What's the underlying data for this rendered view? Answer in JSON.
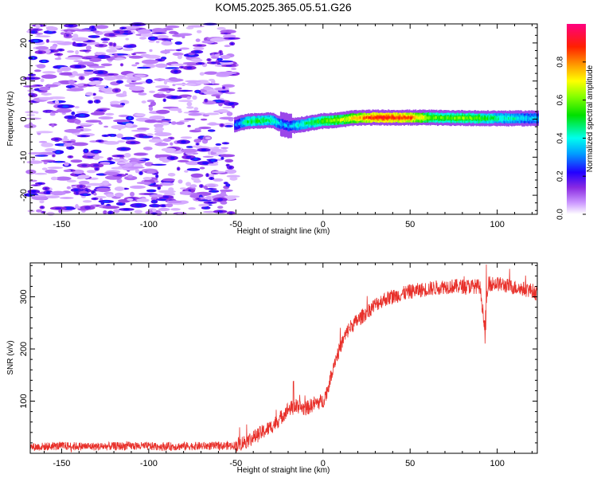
{
  "title": "KOM5.2025.365.05.51.G26",
  "colors": {
    "snr_line": "#e8302a",
    "frame": "#000000",
    "background": "#ffffff"
  },
  "chart_data": [
    {
      "type": "heatmap",
      "name": "spectrogram",
      "xlabel": "Height of straight line (km)",
      "ylabel": "Frequency (Hz)",
      "xlim": [
        -168,
        123
      ],
      "ylim": [
        -25,
        25
      ],
      "x_ticks": [
        -150,
        -100,
        -50,
        0,
        50,
        100
      ],
      "y_ticks": [
        -20,
        -10,
        0,
        10,
        20
      ],
      "noise_region_x": [
        -168,
        -51
      ],
      "noise_freq_range": [
        -25,
        25
      ],
      "signal_trace": {
        "x": [
          -51,
          -45,
          -40,
          -35,
          -30,
          -25,
          -20,
          -15,
          -10,
          -5,
          0,
          5,
          10,
          15,
          20,
          25,
          30,
          40,
          50,
          60,
          70,
          80,
          90,
          100,
          110,
          123
        ],
        "freq": [
          -1.5,
          -0.7,
          -0.5,
          -0.4,
          -0.3,
          -1.2,
          -1.8,
          -1.6,
          -1.2,
          -0.8,
          -0.5,
          -0.4,
          -0.2,
          0.2,
          0.3,
          0.4,
          0.4,
          0.4,
          0.4,
          0.4,
          0.3,
          0.3,
          0.2,
          0.2,
          0.2,
          0.2
        ],
        "amplitude": [
          0.25,
          0.45,
          0.5,
          0.5,
          0.45,
          0.35,
          0.3,
          0.4,
          0.45,
          0.5,
          0.55,
          0.6,
          0.65,
          0.7,
          0.75,
          0.85,
          0.9,
          0.9,
          0.85,
          0.6,
          0.55,
          0.6,
          0.55,
          0.45,
          0.4,
          0.35
        ]
      },
      "colorbar": {
        "label": "Normalized spectral amplitude",
        "range": [
          0,
          1
        ],
        "ticks": [
          "0.0",
          "0.2",
          "0.4",
          "0.6",
          "0.8"
        ]
      }
    },
    {
      "type": "line",
      "name": "snr",
      "xlabel": "Height of straight line (km)",
      "ylabel": "SNR (v/v)",
      "xlim": [
        -168,
        123
      ],
      "ylim": [
        0,
        365
      ],
      "x_ticks": [
        -150,
        -100,
        -50,
        0,
        50,
        100
      ],
      "y_ticks": [
        100,
        200,
        300
      ],
      "series": [
        {
          "name": "SNR",
          "x": [
            -168,
            -150,
            -130,
            -110,
            -90,
            -70,
            -60,
            -50,
            -45,
            -40,
            -35,
            -30,
            -25,
            -20,
            -15,
            -10,
            -5,
            0,
            3,
            6,
            9,
            12,
            15,
            20,
            25,
            30,
            35,
            40,
            50,
            60,
            70,
            80,
            90,
            93,
            95,
            100,
            110,
            120,
            123
          ],
          "y": [
            12,
            14,
            13,
            14,
            13,
            14,
            14,
            15,
            22,
            30,
            40,
            50,
            65,
            85,
            90,
            85,
            95,
            100,
            125,
            170,
            195,
            220,
            240,
            255,
            270,
            285,
            295,
            300,
            310,
            315,
            320,
            320,
            320,
            240,
            325,
            325,
            318,
            312,
            305
          ]
        }
      ],
      "noise_amplitude": 8
    }
  ]
}
